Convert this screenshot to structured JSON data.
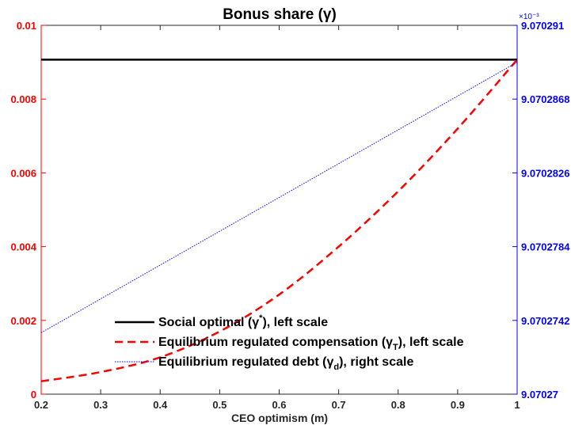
{
  "chart_data": {
    "type": "line",
    "title": "Bonus share (γ)",
    "xlabel": "CEO optimism (m)",
    "xlim": [
      0.2,
      1
    ],
    "ylim_left": [
      0,
      0.01
    ],
    "ylim_right": [
      9.07027,
      9.070291
    ],
    "right_axis_exponent": "×10⁻³",
    "x_ticks": [
      "0.2",
      "0.3",
      "0.4",
      "0.5",
      "0.6",
      "0.7",
      "0.8",
      "0.9",
      "1"
    ],
    "y_left_ticks": [
      "0",
      "0.002",
      "0.004",
      "0.006",
      "0.008",
      "0.01"
    ],
    "y_right_ticks": [
      "9.07027",
      "9.0702742",
      "9.0702784",
      "9.0702826",
      "9.0702868",
      "9.070291"
    ],
    "series": [
      {
        "name": "Social optimal (γ*), left scale",
        "axis": "left",
        "color": "#000000",
        "style": "solid",
        "x": [
          0.2,
          1.0
        ],
        "y": [
          0.00907,
          0.00907
        ]
      },
      {
        "name": "Equilibrium regulated compensation (γT), left scale",
        "axis": "left",
        "color": "#ff0000",
        "style": "dashed",
        "x": [
          0.2,
          0.3,
          0.4,
          0.5,
          0.6,
          0.7,
          0.8,
          0.9,
          1.0
        ],
        "y": [
          0.00035,
          0.0006,
          0.001,
          0.0017,
          0.0027,
          0.004,
          0.0055,
          0.0072,
          0.00907
        ]
      },
      {
        "name": "Equilibrium regulated debt (γd), right scale",
        "axis": "right",
        "color": "#0000ff",
        "style": "dotted",
        "x": [
          0.2,
          1.0
        ],
        "y": [
          9.0702735,
          9.0702889
        ]
      }
    ],
    "legend": {
      "placement": "bottom-center",
      "entries": [
        {
          "main": "Social optimal (",
          "sym": "γ",
          "sup": "*",
          "sub": "",
          "rest": "), left scale"
        },
        {
          "main": "Equilibrium regulated compensation (",
          "sym": "γ",
          "sup": "",
          "sub": "T",
          "rest": "), left scale"
        },
        {
          "main": "Equilibrium regulated debt (",
          "sym": "γ",
          "sup": "",
          "sub": "d",
          "rest": "), right scale"
        }
      ]
    },
    "grid": false
  }
}
